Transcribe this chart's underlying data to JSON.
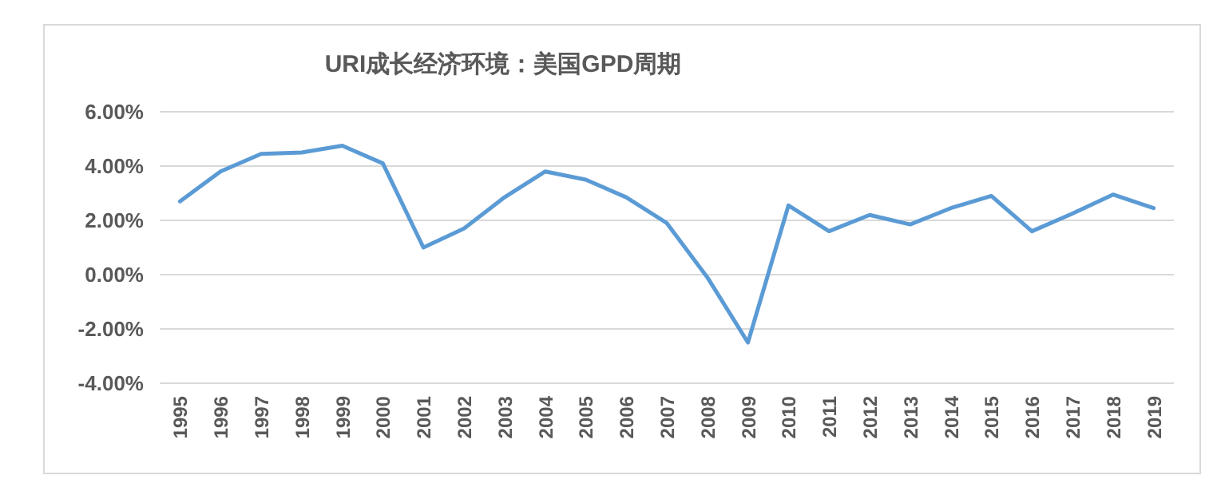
{
  "chart_data": {
    "type": "line",
    "title": "URI成长经济环境：美国GPD周期",
    "categories": [
      "1995",
      "1996",
      "1997",
      "1998",
      "1999",
      "2000",
      "2001",
      "2002",
      "2003",
      "2004",
      "2005",
      "2006",
      "2007",
      "2008",
      "2009",
      "2010",
      "2011",
      "2012",
      "2013",
      "2014",
      "2015",
      "2016",
      "2017",
      "2018",
      "2019"
    ],
    "series": [
      {
        "color": "#5b9bd5",
        "values": [
          2.7,
          3.8,
          4.45,
          4.5,
          4.75,
          4.1,
          1.0,
          1.7,
          2.85,
          3.8,
          3.5,
          2.85,
          1.9,
          -0.1,
          -2.5,
          2.55,
          1.6,
          2.2,
          1.85,
          2.45,
          2.9,
          1.6,
          2.25,
          2.95,
          2.45
        ]
      }
    ],
    "ylim": [
      -4,
      6
    ],
    "yticks": [
      {
        "value": -4,
        "label": "-4.00%"
      },
      {
        "value": -2,
        "label": "-2.00%"
      },
      {
        "value": 0,
        "label": "0.00%"
      },
      {
        "value": 2,
        "label": "2.00%"
      },
      {
        "value": 4,
        "label": "4.00%"
      },
      {
        "value": 6,
        "label": "6.00%"
      }
    ],
    "grid": "y",
    "marker": "none",
    "line_style": "solid"
  }
}
